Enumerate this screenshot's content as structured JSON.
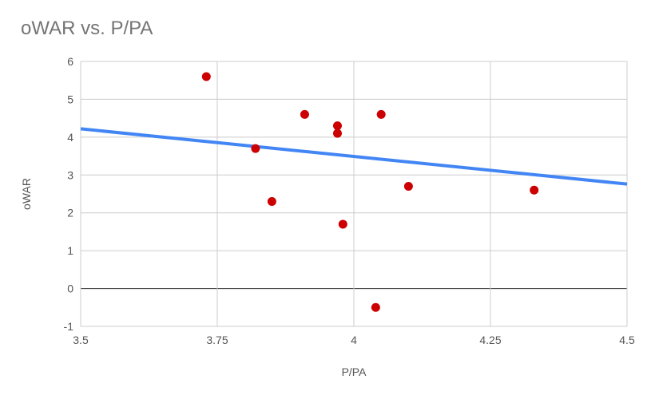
{
  "chart_data": {
    "type": "scatter",
    "title": "oWAR vs. P/PA",
    "xlabel": "P/PA",
    "ylabel": "oWAR",
    "xlim": [
      3.5,
      4.5
    ],
    "ylim": [
      -1,
      6
    ],
    "x_ticks": [
      3.5,
      3.75,
      4,
      4.25,
      4.5
    ],
    "x_tick_labels": [
      "3.5",
      "3.75",
      "4",
      "4.25",
      "4.5"
    ],
    "y_ticks": [
      -1,
      0,
      1,
      2,
      3,
      4,
      5,
      6
    ],
    "y_tick_labels": [
      "-1",
      "0",
      "1",
      "2",
      "3",
      "4",
      "5",
      "6"
    ],
    "grid": true,
    "legend": "none",
    "colors": {
      "points": "#cc0000",
      "trendline": "#4285f4",
      "grid": "#cccccc",
      "zero_line": "#333333",
      "text": "#555555",
      "title": "#757575"
    },
    "series": [
      {
        "x": [
          3.73,
          3.82,
          3.85,
          3.91,
          3.97,
          3.97,
          3.98,
          4.04,
          4.05,
          4.1,
          4.33
        ],
        "y": [
          5.6,
          3.7,
          2.3,
          4.6,
          4.3,
          4.1,
          1.7,
          -0.5,
          4.6,
          2.7,
          2.6
        ]
      }
    ],
    "trendline": {
      "type": "linear",
      "x": [
        3.5,
        4.5
      ],
      "y": [
        4.22,
        2.76
      ]
    }
  }
}
